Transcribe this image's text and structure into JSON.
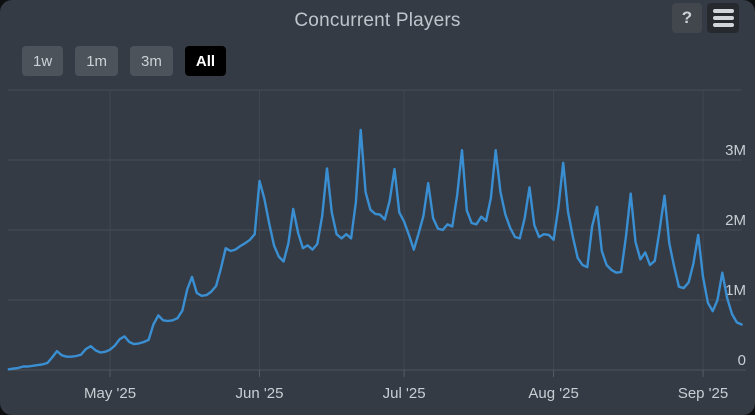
{
  "header": {
    "title": "Concurrent Players",
    "help_button_label": "?"
  },
  "range_selector": {
    "buttons": [
      {
        "label": "1w",
        "active": false
      },
      {
        "label": "1m",
        "active": false
      },
      {
        "label": "3m",
        "active": false
      },
      {
        "label": "All",
        "active": true
      }
    ]
  },
  "colors": {
    "panel_background": "#353b44",
    "line": "#3a8fd3",
    "grid_horizontal": "#474e57",
    "grid_vertical": "#404751",
    "axis_line": "#4f565f",
    "tick": "#565d66",
    "axis_label": "#c9ced4",
    "title_text": "#bfc5cb",
    "button_background": "#4d535a",
    "button_text": "#ccd1d7",
    "active_button_background": "#000000",
    "active_button_text": "#ffffff",
    "help_button_background": "#42474e",
    "menu_button_background": "#26292e",
    "hamburger_bars": "#d2d6da"
  },
  "chart_data": {
    "type": "line",
    "title": "Concurrent Players",
    "series_name": "Concurrent Players",
    "unit_note": "daily values in millions of players",
    "start_date": "2025-04-10",
    "end_date": "2025-09-09",
    "ylim": [
      0,
      4
    ],
    "grid": true,
    "legend": "none",
    "y_axis_side": "right",
    "y_ticks": [
      {
        "value": 0,
        "label": "0"
      },
      {
        "value": 1,
        "label": "1M"
      },
      {
        "value": 2,
        "label": "2M"
      },
      {
        "value": 3,
        "label": "3M"
      },
      {
        "value": 4,
        "label": ""
      }
    ],
    "x_ticks": [
      {
        "day": 21,
        "label": "May '25"
      },
      {
        "day": 52,
        "label": "Jun '25"
      },
      {
        "day": 82,
        "label": "Jul '25"
      },
      {
        "day": 113,
        "label": "Aug '25"
      },
      {
        "day": 144,
        "label": "Sep '25"
      }
    ],
    "values": [
      0.01,
      0.02,
      0.03,
      0.05,
      0.05,
      0.06,
      0.07,
      0.08,
      0.1,
      0.18,
      0.27,
      0.21,
      0.19,
      0.19,
      0.2,
      0.22,
      0.3,
      0.34,
      0.28,
      0.25,
      0.26,
      0.29,
      0.35,
      0.44,
      0.48,
      0.4,
      0.37,
      0.38,
      0.4,
      0.43,
      0.65,
      0.78,
      0.71,
      0.7,
      0.71,
      0.74,
      0.85,
      1.15,
      1.33,
      1.1,
      1.06,
      1.07,
      1.12,
      1.2,
      1.45,
      1.74,
      1.7,
      1.72,
      1.77,
      1.81,
      1.86,
      1.94,
      2.7,
      2.45,
      2.1,
      1.78,
      1.62,
      1.55,
      1.81,
      2.3,
      1.96,
      1.74,
      1.78,
      1.72,
      1.8,
      2.2,
      2.88,
      2.25,
      1.94,
      1.88,
      1.94,
      1.88,
      2.4,
      3.43,
      2.54,
      2.29,
      2.23,
      2.22,
      2.15,
      2.42,
      2.87,
      2.25,
      2.12,
      1.93,
      1.72,
      1.95,
      2.2,
      2.67,
      2.17,
      2.02,
      2.0,
      2.08,
      2.05,
      2.5,
      3.14,
      2.28,
      2.1,
      2.08,
      2.19,
      2.13,
      2.46,
      3.14,
      2.54,
      2.22,
      2.03,
      1.9,
      1.88,
      2.17,
      2.61,
      2.07,
      1.9,
      1.94,
      1.93,
      1.86,
      2.32,
      2.96,
      2.26,
      1.9,
      1.6,
      1.5,
      1.47,
      2.05,
      2.33,
      1.7,
      1.5,
      1.43,
      1.39,
      1.4,
      1.9,
      2.52,
      1.83,
      1.58,
      1.68,
      1.5,
      1.56,
      2.0,
      2.49,
      1.81,
      1.48,
      1.19,
      1.17,
      1.25,
      1.52,
      1.93,
      1.33,
      0.96,
      0.84,
      1.0,
      1.39,
      1.03,
      0.8,
      0.68,
      0.65
    ]
  }
}
